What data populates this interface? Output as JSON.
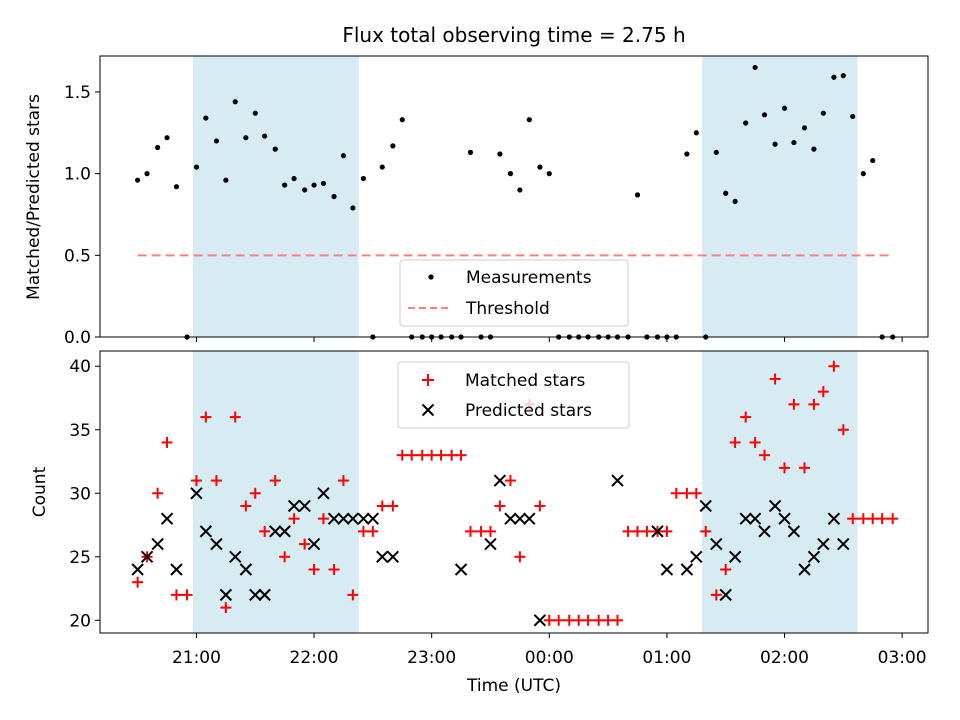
{
  "figure": {
    "title": "Flux total observing time = 2.75 h",
    "xlabel": "Time (UTC)",
    "x_ticks": [
      "21:00",
      "22:00",
      "23:00",
      "00:00",
      "01:00",
      "02:00",
      "03:00"
    ],
    "x_tick_hours": [
      21,
      22,
      23,
      24,
      25,
      26,
      27
    ],
    "xlim_hours": [
      20.18,
      27.22
    ],
    "shaded_intervals_hours": [
      [
        20.97,
        22.38
      ],
      [
        25.3,
        26.62
      ]
    ],
    "shade_color": "#add8e6"
  },
  "chart_data": [
    {
      "type": "scatter",
      "title": "Flux total observing time = 2.75 h",
      "ylabel": "Matched/Predicted stars",
      "ylim": [
        0,
        1.72
      ],
      "y_ticks": [
        0.0,
        0.5,
        1.0,
        1.5
      ],
      "y_tick_labels": [
        "0.0",
        "0.5",
        "1.0",
        "1.5"
      ],
      "legend": {
        "placement": "bottom-center",
        "entries": [
          "Measurements",
          "Threshold"
        ]
      },
      "series": [
        {
          "name": "Measurements",
          "marker": "dot",
          "color": "#000000",
          "x": [
            20.5,
            20.58,
            20.67,
            20.75,
            20.83,
            20.92,
            21.0,
            21.08,
            21.17,
            21.25,
            21.33,
            21.42,
            21.5,
            21.58,
            21.67,
            21.75,
            21.83,
            21.92,
            22.0,
            22.08,
            22.17,
            22.25,
            22.33,
            22.42,
            22.5,
            22.58,
            22.67,
            22.75,
            22.83,
            22.92,
            23.0,
            23.08,
            23.17,
            23.25,
            23.33,
            23.42,
            23.5,
            23.58,
            23.67,
            23.75,
            23.83,
            23.92,
            24.0,
            24.08,
            24.17,
            24.25,
            24.33,
            24.42,
            24.5,
            24.58,
            24.67,
            24.75,
            24.83,
            24.92,
            25.0,
            25.08,
            25.17,
            25.25,
            25.33,
            25.42,
            25.5,
            25.58,
            25.67,
            25.75,
            25.83,
            25.92,
            26.0,
            26.08,
            26.17,
            26.25,
            26.33,
            26.42,
            26.5,
            26.58,
            26.67,
            26.75,
            26.83,
            26.92
          ],
          "y": [
            0.96,
            1.0,
            1.16,
            1.22,
            0.92,
            0.0,
            1.04,
            1.34,
            1.2,
            0.96,
            1.44,
            1.22,
            1.37,
            1.23,
            1.15,
            0.93,
            0.97,
            0.9,
            0.93,
            0.94,
            0.86,
            1.11,
            0.79,
            0.97,
            0.0,
            1.04,
            1.17,
            1.33,
            0.0,
            0.0,
            0.0,
            0.0,
            0.0,
            0.0,
            1.13,
            0.0,
            0.0,
            1.12,
            1.0,
            0.9,
            1.33,
            1.04,
            1.0,
            0.0,
            0.0,
            0.0,
            0.0,
            0.0,
            0.0,
            0.0,
            0.0,
            0.87,
            0.0,
            0.0,
            0.0,
            0.0,
            1.12,
            1.25,
            0.0,
            1.13,
            0.88,
            0.83,
            1.31,
            1.65,
            1.36,
            1.18,
            1.4,
            1.19,
            1.28,
            1.15,
            1.37,
            1.59,
            1.6,
            1.35,
            1.0,
            1.08,
            0.0,
            0.0
          ]
        },
        {
          "name": "Threshold",
          "style": "dashed",
          "color": "#ff7f7f",
          "x": [
            20.5,
            26.92
          ],
          "y": [
            0.5,
            0.5
          ]
        }
      ]
    },
    {
      "type": "scatter",
      "ylabel": "Count",
      "ylim": [
        19,
        41.2
      ],
      "y_ticks": [
        20,
        25,
        30,
        35,
        40
      ],
      "y_tick_labels": [
        "20",
        "25",
        "30",
        "35",
        "40"
      ],
      "legend": {
        "placement": "top-center",
        "entries": [
          "Matched stars",
          "Predicted stars"
        ]
      },
      "series": [
        {
          "name": "Matched stars",
          "marker": "plus",
          "color": "#ff0000",
          "x": [
            20.5,
            20.58,
            20.67,
            20.75,
            20.83,
            20.92,
            21.0,
            21.08,
            21.17,
            21.25,
            21.33,
            21.42,
            21.5,
            21.58,
            21.67,
            21.75,
            21.83,
            21.92,
            22.0,
            22.08,
            22.17,
            22.25,
            22.33,
            22.42,
            22.5,
            22.58,
            22.67,
            22.75,
            22.83,
            22.92,
            23.0,
            23.08,
            23.17,
            23.25,
            23.33,
            23.42,
            23.5,
            23.58,
            23.67,
            23.75,
            23.83,
            23.92,
            24.0,
            24.08,
            24.17,
            24.25,
            24.33,
            24.42,
            24.5,
            24.58,
            24.67,
            24.75,
            24.83,
            24.92,
            25.0,
            25.08,
            25.17,
            25.25,
            25.33,
            25.42,
            25.5,
            25.58,
            25.67,
            25.75,
            25.83,
            25.92,
            26.0,
            26.08,
            26.17,
            26.25,
            26.33,
            26.42,
            26.5,
            26.58,
            26.67,
            26.75,
            26.83,
            26.92
          ],
          "y": [
            23,
            25,
            30,
            34,
            22,
            22,
            31,
            36,
            31,
            21,
            36,
            29,
            30,
            27,
            31,
            25,
            28,
            26,
            24,
            28,
            24,
            31,
            22,
            27,
            27,
            29,
            29,
            33,
            33,
            33,
            33,
            33,
            33,
            33,
            27,
            27,
            27,
            29,
            31,
            25,
            37,
            29,
            20,
            20,
            20,
            20,
            20,
            20,
            20,
            20,
            27,
            27,
            27,
            27,
            27,
            30,
            30,
            30,
            27,
            22,
            24,
            34,
            36,
            34,
            33,
            39,
            32,
            37,
            32,
            37,
            38,
            40,
            35,
            28,
            28,
            28,
            28,
            28
          ]
        },
        {
          "name": "Predicted stars",
          "marker": "x",
          "color": "#000000",
          "x": [
            20.5,
            20.58,
            20.67,
            20.75,
            20.83,
            20.92,
            21.0,
            21.08,
            21.17,
            21.25,
            21.33,
            21.42,
            21.5,
            21.58,
            21.67,
            21.75,
            21.83,
            21.92,
            22.0,
            22.08,
            22.17,
            22.25,
            22.33,
            22.42,
            22.5,
            22.58,
            22.67,
            22.75,
            22.83,
            22.92,
            23.0,
            23.08,
            23.17,
            23.25,
            23.33,
            23.42,
            23.5,
            23.58,
            23.67,
            23.75,
            23.83,
            23.92,
            24.0,
            24.08,
            24.17,
            24.25,
            24.33,
            24.42,
            24.5,
            24.58,
            24.67,
            24.75,
            24.83,
            24.92,
            25.0,
            25.08,
            25.17,
            25.25,
            25.33,
            25.42,
            25.5,
            25.58,
            25.67,
            25.75,
            25.83,
            25.92,
            26.0,
            26.08,
            26.17,
            26.25,
            26.33,
            26.42,
            26.5,
            26.58,
            26.67,
            26.75,
            26.83,
            26.92
          ],
          "y": [
            24,
            25,
            26,
            28,
            24,
            null,
            30,
            27,
            26,
            22,
            25,
            24,
            22,
            22,
            27,
            27,
            29,
            29,
            26,
            30,
            28,
            28,
            28,
            28,
            28,
            25,
            25,
            null,
            null,
            null,
            null,
            null,
            null,
            24,
            null,
            null,
            26,
            31,
            28,
            28,
            28,
            20,
            null,
            null,
            null,
            null,
            null,
            null,
            null,
            31,
            null,
            null,
            null,
            27,
            24,
            null,
            24,
            25,
            29,
            26,
            22,
            25,
            28,
            28,
            27,
            29,
            28,
            27,
            24,
            25,
            26,
            28,
            26,
            null,
            null,
            null,
            null,
            null
          ]
        }
      ]
    }
  ]
}
